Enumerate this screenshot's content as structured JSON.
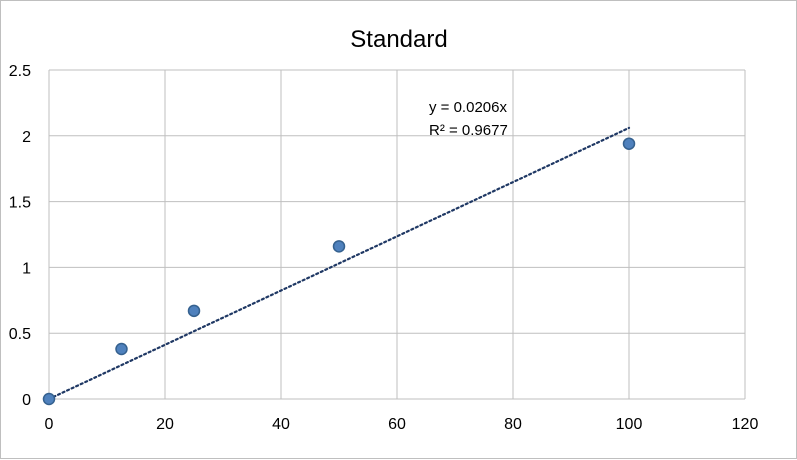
{
  "chart_data": {
    "type": "scatter",
    "title": "Standard",
    "xlabel": "",
    "ylabel": "",
    "xlim": [
      0,
      120
    ],
    "ylim": [
      0,
      2.5
    ],
    "xticks": [
      "0",
      "20",
      "40",
      "60",
      "80",
      "100",
      "120"
    ],
    "yticks": [
      "0",
      "0.5",
      "1",
      "1.5",
      "2",
      "2.5"
    ],
    "grid": true,
    "legend": "none",
    "series": [
      {
        "x": [
          0,
          12.5,
          25,
          50,
          100
        ],
        "y": [
          0,
          0.38,
          0.67,
          1.16,
          1.94
        ],
        "color": "#4f81bd"
      }
    ],
    "trendline": {
      "type": "linear",
      "slope": 0.0206,
      "x_range": [
        0,
        100
      ],
      "color": "#1f3864",
      "style": "dotted"
    },
    "annotations": {
      "equation": "y = 0.0206x",
      "r_squared": "R² = 0.9677"
    }
  }
}
